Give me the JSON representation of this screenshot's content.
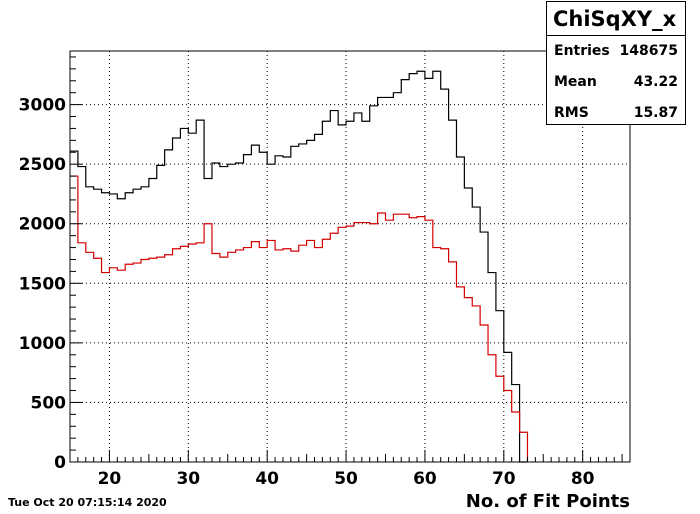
{
  "chart_data": {
    "type": "histogram",
    "title": "ChiSqXY_x",
    "xlabel": "No. of Fit Points",
    "ylabel": "",
    "xlim": [
      15,
      86
    ],
    "ylim": [
      0,
      3450
    ],
    "bin_width": 1,
    "x_ticks": [
      20,
      30,
      40,
      50,
      60,
      70,
      80
    ],
    "y_ticks": [
      0,
      500,
      1000,
      1500,
      2000,
      2500,
      3000
    ],
    "grid": true,
    "series": [
      {
        "color": "#000000",
        "bin_starts": [
          15,
          16,
          17,
          18,
          19,
          20,
          21,
          22,
          23,
          24,
          25,
          26,
          27,
          28,
          29,
          30,
          31,
          32,
          33,
          34,
          35,
          36,
          37,
          38,
          39,
          40,
          41,
          42,
          43,
          44,
          45,
          46,
          47,
          48,
          49,
          50,
          51,
          52,
          53,
          54,
          55,
          56,
          57,
          58,
          59,
          60,
          61,
          62,
          63,
          64,
          65,
          66,
          67,
          68,
          69,
          70,
          71,
          72
        ],
        "values": [
          2610,
          2480,
          2310,
          2290,
          2260,
          2250,
          2210,
          2260,
          2290,
          2310,
          2380,
          2490,
          2620,
          2720,
          2800,
          2760,
          2870,
          2380,
          2510,
          2480,
          2500,
          2510,
          2580,
          2660,
          2600,
          2500,
          2570,
          2560,
          2650,
          2670,
          2700,
          2750,
          2860,
          2950,
          2830,
          2860,
          2930,
          2860,
          2990,
          3060,
          3060,
          3100,
          3210,
          3260,
          3280,
          3220,
          3280,
          3130,
          2870,
          2560,
          2300,
          2140,
          1930,
          1590,
          1270,
          920,
          650,
          0
        ]
      },
      {
        "color": "#d40000",
        "bin_starts": [
          15,
          16,
          17,
          18,
          19,
          20,
          21,
          22,
          23,
          24,
          25,
          26,
          27,
          28,
          29,
          30,
          31,
          32,
          33,
          34,
          35,
          36,
          37,
          38,
          39,
          40,
          41,
          42,
          43,
          44,
          45,
          46,
          47,
          48,
          49,
          50,
          51,
          52,
          53,
          54,
          55,
          56,
          57,
          58,
          59,
          60,
          61,
          62,
          63,
          64,
          65,
          66,
          67,
          68,
          69,
          70,
          71,
          72
        ],
        "values": [
          2400,
          1840,
          1760,
          1710,
          1590,
          1630,
          1610,
          1660,
          1670,
          1700,
          1710,
          1720,
          1740,
          1790,
          1810,
          1830,
          1840,
          2000,
          1750,
          1720,
          1760,
          1780,
          1800,
          1850,
          1800,
          1860,
          1780,
          1790,
          1770,
          1820,
          1860,
          1800,
          1870,
          1920,
          1970,
          1980,
          2010,
          2010,
          2000,
          2090,
          2030,
          2080,
          2080,
          2050,
          2060,
          2030,
          1800,
          1790,
          1680,
          1470,
          1380,
          1310,
          1150,
          900,
          720,
          600,
          420,
          250
        ]
      }
    ]
  },
  "stats_box": {
    "title": "ChiSqXY_x",
    "entries_label": "Entries",
    "entries_value": "148675",
    "mean_label": "Mean",
    "mean_value": "43.22",
    "rms_label": "RMS",
    "rms_value": "15.87"
  },
  "datestamp": "Tue Oct 20 07:15:14 2020"
}
